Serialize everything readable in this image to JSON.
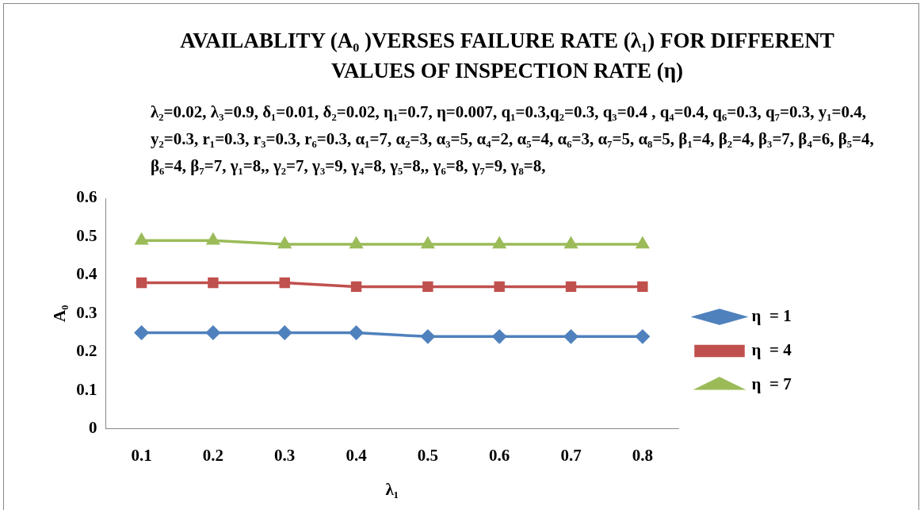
{
  "chart_data": {
    "type": "line",
    "title": "AVAILABLITY (A₀ )VERSES FAILURE RATE (λ₁) FOR DIFFERENT VALUES OF  INSPECTION RATE (η)",
    "subtitle": "λ₂=0.02, λ₃=0.9, δ₁=0.01, δ₂=0.02, η₁=0.7, η=0.007, q₁=0.3,q₂=0.3, q₃=0.4 , q₄=0.4, q₆=0.3, q₇=0.3, y₁=0.4, y₂=0.3, r₁=0.3, r₃=0.3, r₆=0.3, α₁=7, α₂=3, α₃=5, α₄=2, α₅=4, α₆=3, α₇=5, α₈=5, β₁=4, β₂=4, β₃=7, β₄=6, β₅=4, β₆=4, β₇=7, γ₁=8,, γ₂=7, γ₃=9, γ₄=8, γ₅=8,, γ₆=8, γ₇=9, γ₈=8,",
    "xlabel": "λ₁",
    "ylabel": "A₀",
    "categories": [
      "0.1",
      "0.2",
      "0.3",
      "0.4",
      "0.5",
      "0.6",
      "0.7",
      "0.8"
    ],
    "series": [
      {
        "name": "η  = 1",
        "color": "#4f81bd",
        "marker": "diamond",
        "values": [
          0.25,
          0.25,
          0.25,
          0.25,
          0.24,
          0.24,
          0.24,
          0.24
        ]
      },
      {
        "name": "η  = 4",
        "color": "#c0504d",
        "marker": "square",
        "values": [
          0.38,
          0.38,
          0.38,
          0.37,
          0.37,
          0.37,
          0.37,
          0.37
        ]
      },
      {
        "name": "η  = 7",
        "color": "#9bbb59",
        "marker": "triangle",
        "values": [
          0.49,
          0.49,
          0.48,
          0.48,
          0.48,
          0.48,
          0.48,
          0.48
        ]
      }
    ],
    "ylim": [
      0,
      0.6
    ],
    "yticks": [
      0,
      0.1,
      0.2,
      0.3,
      0.4,
      0.5,
      0.6
    ],
    "grid": false,
    "legend": "right"
  }
}
